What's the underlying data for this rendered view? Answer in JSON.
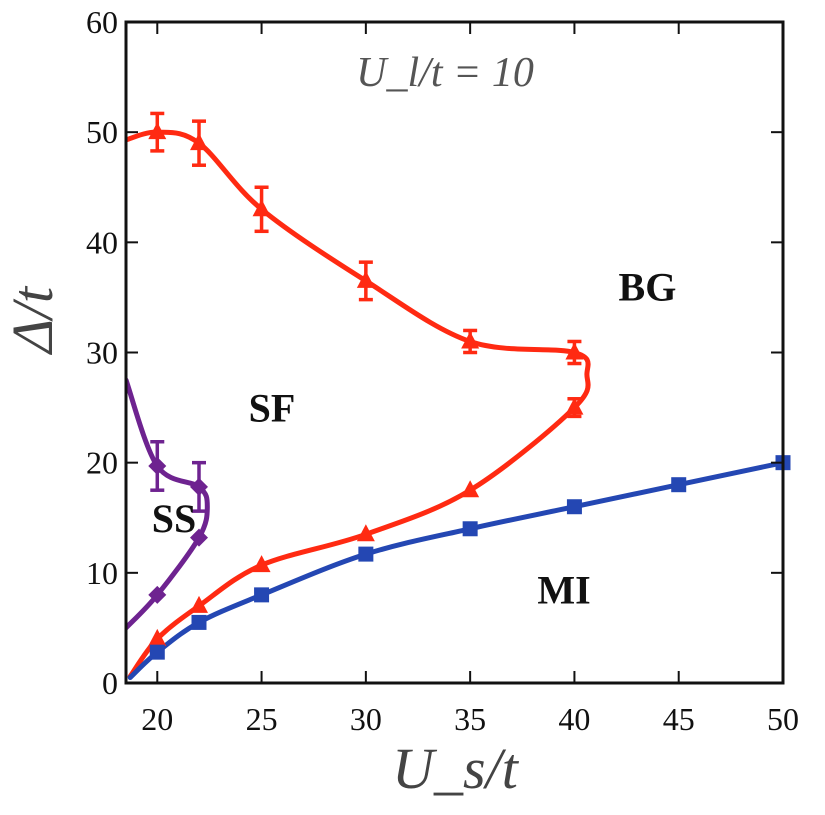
{
  "chart_data": {
    "type": "line",
    "title": "",
    "annotation": "U_l/t = 10",
    "xlabel": "U_s/t",
    "ylabel": "Δ/t",
    "xlim": [
      18.5,
      50
    ],
    "ylim": [
      0,
      60
    ],
    "x_ticks": [
      20,
      25,
      30,
      35,
      40,
      45,
      50
    ],
    "y_ticks": [
      0,
      10,
      20,
      30,
      40,
      50,
      60
    ],
    "grid": false,
    "colors": {
      "red": "#ff2a12",
      "blue": "#2447b3",
      "purple": "#6e2390"
    },
    "regions": [
      {
        "label": "BG",
        "x": 43.5,
        "y": 36
      },
      {
        "label": "SF",
        "x": 25.5,
        "y": 25
      },
      {
        "label": "SS",
        "x": 20.8,
        "y": 15
      },
      {
        "label": "MI",
        "x": 39.5,
        "y": 8.5
      }
    ],
    "series": [
      {
        "id": "red",
        "color": "#ff2a12",
        "marker": "triangle",
        "points": [
          {
            "x": 18.7,
            "y": 0.6
          },
          {
            "x": 20,
            "y": 4
          },
          {
            "x": 22,
            "y": 7
          },
          {
            "x": 25,
            "y": 10.7
          },
          {
            "x": 30,
            "y": 13.5
          },
          {
            "x": 35,
            "y": 17.5
          },
          {
            "x": 40,
            "y": 25
          },
          {
            "x": 40.6,
            "y": 28
          },
          {
            "x": 40,
            "y": 30
          },
          {
            "x": 35,
            "y": 31
          },
          {
            "x": 30,
            "y": 36.5
          },
          {
            "x": 25,
            "y": 43
          },
          {
            "x": 22,
            "y": 49
          },
          {
            "x": 20,
            "y": 50
          },
          {
            "x": 18.5,
            "y": 49.3
          }
        ],
        "markers": [
          {
            "x": 20,
            "y": 4,
            "err": 0
          },
          {
            "x": 22,
            "y": 7,
            "err": 0
          },
          {
            "x": 25,
            "y": 10.7,
            "err": 0
          },
          {
            "x": 30,
            "y": 13.5,
            "err": 0
          },
          {
            "x": 35,
            "y": 17.5,
            "err": 0
          },
          {
            "x": 40,
            "y": 25,
            "err": 0.8
          },
          {
            "x": 40,
            "y": 30,
            "err": 1
          },
          {
            "x": 35,
            "y": 31,
            "err": 1
          },
          {
            "x": 30,
            "y": 36.5,
            "err": 1.7
          },
          {
            "x": 25,
            "y": 43,
            "err": 2
          },
          {
            "x": 22,
            "y": 49,
            "err": 2
          },
          {
            "x": 20,
            "y": 50,
            "err": 1.7
          }
        ]
      },
      {
        "id": "blue",
        "color": "#2447b3",
        "marker": "square",
        "points": [
          {
            "x": 18.7,
            "y": 0.5
          },
          {
            "x": 20,
            "y": 2.8
          },
          {
            "x": 22,
            "y": 5.5
          },
          {
            "x": 25,
            "y": 8
          },
          {
            "x": 30,
            "y": 11.7
          },
          {
            "x": 35,
            "y": 14
          },
          {
            "x": 40,
            "y": 16
          },
          {
            "x": 45,
            "y": 18
          },
          {
            "x": 50,
            "y": 20
          }
        ],
        "markers": [
          {
            "x": 20,
            "y": 2.8,
            "err": 0
          },
          {
            "x": 22,
            "y": 5.5,
            "err": 0
          },
          {
            "x": 25,
            "y": 8,
            "err": 0
          },
          {
            "x": 30,
            "y": 11.7,
            "err": 0
          },
          {
            "x": 35,
            "y": 14,
            "err": 0
          },
          {
            "x": 40,
            "y": 16,
            "err": 0
          },
          {
            "x": 45,
            "y": 18,
            "err": 0
          },
          {
            "x": 50,
            "y": 20,
            "err": 0
          }
        ]
      },
      {
        "id": "purple",
        "color": "#6e2390",
        "marker": "diamond",
        "points": [
          {
            "x": 18.5,
            "y": 5
          },
          {
            "x": 20,
            "y": 8
          },
          {
            "x": 22,
            "y": 13.2
          },
          {
            "x": 22.4,
            "y": 16
          },
          {
            "x": 22,
            "y": 17.8
          },
          {
            "x": 20,
            "y": 19.7
          },
          {
            "x": 18.5,
            "y": 27.5
          }
        ],
        "markers": [
          {
            "x": 20,
            "y": 8,
            "err": 0
          },
          {
            "x": 22,
            "y": 13.2,
            "err": 0
          },
          {
            "x": 22,
            "y": 17.8,
            "err": 2.2
          },
          {
            "x": 20,
            "y": 19.7,
            "err": 2.2
          }
        ]
      }
    ]
  }
}
